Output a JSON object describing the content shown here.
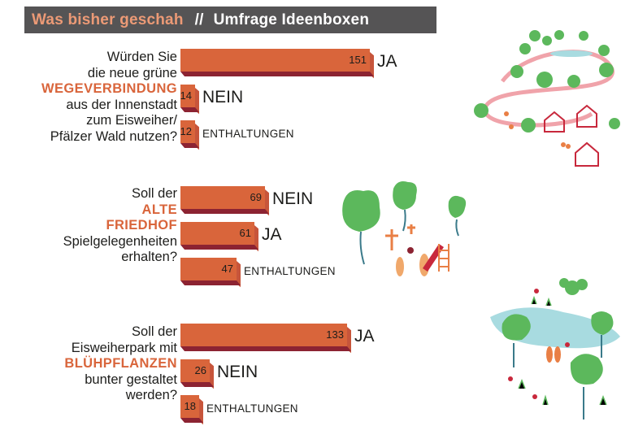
{
  "header": {
    "title": "Was bisher geschah",
    "separator": "//",
    "subtitle": "Umfrage Ideenboxen"
  },
  "colors": {
    "bar": "#d9653b",
    "bar_shadow": "#8c2332",
    "highlight": "#d9653b",
    "header_bg": "#555455",
    "tree": "#5cb85c",
    "house": "#c8283c",
    "path": "#f0a3aa",
    "pond": "#a8dbe0"
  },
  "questions": [
    {
      "lines": [
        "Würden Sie",
        "die neue grüne",
        "WEGEVERBINDUNG",
        "aus der Innenstadt",
        "zum Eisweiher/",
        "Pfälzer Wald nutzen?"
      ],
      "highlight_index": 2
    },
    {
      "lines": [
        "Soll der",
        "ALTE",
        "FRIEDHOF",
        "Spielgelegenheiten",
        "erhalten?"
      ],
      "highlight_index": [
        1,
        2
      ]
    },
    {
      "lines": [
        "Soll der",
        "Eisweiherpark mit",
        "BLÜHPFLANZEN",
        "bunter gestaltet",
        "werden?"
      ],
      "highlight_index": 2
    }
  ],
  "chart_data": [
    {
      "type": "bar",
      "orientation": "horizontal",
      "categories": [
        "JA",
        "NEIN",
        "ENTHALTUNGEN"
      ],
      "values": [
        151,
        14,
        12
      ]
    },
    {
      "type": "bar",
      "orientation": "horizontal",
      "categories": [
        "NEIN",
        "JA",
        "ENTHALTUNGEN"
      ],
      "values": [
        69,
        61,
        47
      ]
    },
    {
      "type": "bar",
      "orientation": "horizontal",
      "categories": [
        "JA",
        "NEIN",
        "ENTHALTUNGEN"
      ],
      "values": [
        133,
        26,
        18
      ]
    }
  ],
  "illustrations": [
    "path-trees-houses-illustration",
    "cemetery-playground-illustration",
    "pond-flowers-illustration"
  ]
}
